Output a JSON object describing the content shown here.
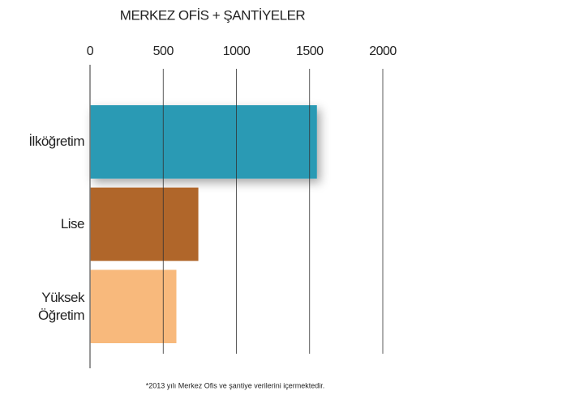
{
  "chart_data": {
    "type": "bar",
    "orientation": "horizontal",
    "title": "MERKEZ OFİS + ŞANTİYELER",
    "categories": [
      "İlköğretim",
      "Lise",
      "Yüksek Öğretim"
    ],
    "values": [
      1550,
      740,
      590
    ],
    "colors": [
      "#2a9ab4",
      "#b0662a",
      "#f8b97c"
    ],
    "xlim": [
      0,
      2000
    ],
    "xticks": [
      0,
      500,
      1000,
      1500,
      2000
    ],
    "grid": true,
    "footnote": "*2013 yılı Merkez Ofis ve şantiye verilerini içermektedir."
  }
}
